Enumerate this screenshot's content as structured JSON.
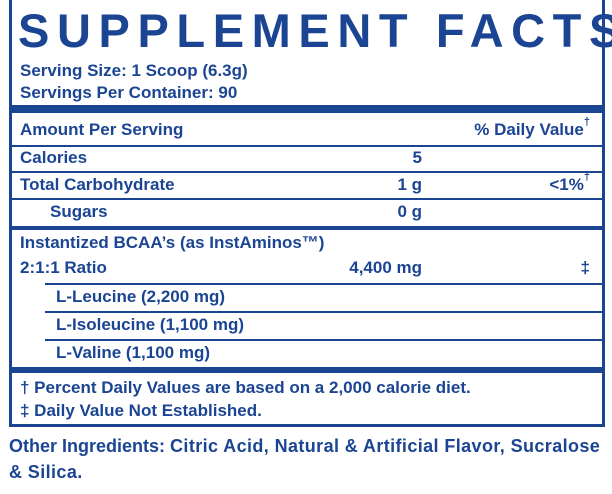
{
  "title": "SUPPLEMENT FACTS",
  "serving_size": "Serving Size: 1 Scoop (6.3g)",
  "servings_per_container": "Servings Per Container: 90",
  "table": {
    "header": {
      "amount": "Amount Per Serving",
      "daily_value": "% Daily Value",
      "daily_value_mark": "†"
    },
    "rows": [
      {
        "name": "Calories",
        "amount": "5"
      },
      {
        "name": "Total Carbohydrate",
        "amount": "1 g",
        "daily_value": "<1%",
        "daily_value_mark": "†"
      },
      {
        "name": "Sugars",
        "amount": "0 g",
        "indent": true
      },
      {
        "name": "Instantized BCAA’s (as InstAminos™)"
      },
      {
        "name": "2:1:1 Ratio",
        "amount": "4,400 mg",
        "daily_value": "‡"
      },
      {
        "name": "L-Leucine (2,200 mg)",
        "indent": true
      },
      {
        "name": "L-Isoleucine (1,100 mg)",
        "indent": true
      },
      {
        "name": "L-Valine (1,100 mg)",
        "indent": true
      }
    ]
  },
  "footnotes": [
    "† Percent Daily Values are based on a 2,000 calorie diet.",
    "‡ Daily Value Not Established."
  ],
  "other_ingredients": {
    "label": "Other Ingredients:",
    "text": "Citric Acid, Natural & Artificial Flavor, Sucralose & Silica."
  }
}
